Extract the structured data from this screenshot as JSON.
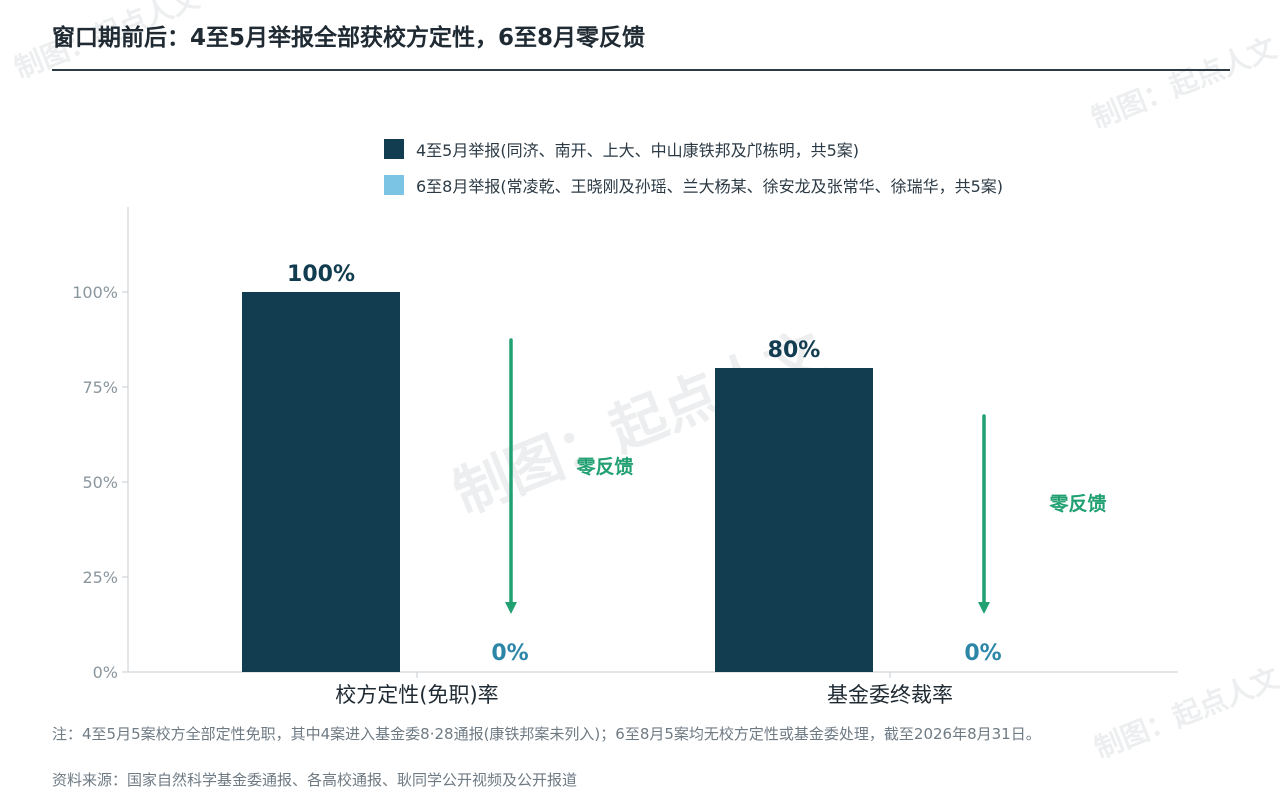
{
  "title": "窗口期前后：4至5月举报全部获校方定性，6至8月零反馈",
  "watermark": "制图：起点人文",
  "colors": {
    "series1": "#123c50",
    "series2": "#7cc4e4",
    "arrow": "#21a072",
    "zero_label": "#2d86a8",
    "axis_tick": "#8a969e",
    "axis_line": "#c7ced3"
  },
  "chart_data": {
    "type": "bar",
    "categories": [
      "校方定性(免职)率",
      "基金委终裁率"
    ],
    "series": [
      {
        "name": "4至5月举报(同济、南开、上大、中山康铁邦及邝栋明，共5案)",
        "values": [
          100,
          80
        ],
        "labels": [
          "100%",
          "80%"
        ]
      },
      {
        "name": "6至8月举报(常凌乾、王晓刚及孙瑶、兰大杨某、徐安龙及张常华、徐瑞华，共5案)",
        "values": [
          0,
          0
        ],
        "labels": [
          "0%",
          "0%"
        ]
      }
    ],
    "ylim": [
      0,
      100
    ],
    "yticks": [
      "0%",
      "25%",
      "50%",
      "75%",
      "100%"
    ],
    "legend_position": "top",
    "annotations": [
      "零反馈",
      "零反馈"
    ],
    "grid": false
  },
  "footer": {
    "note": "注：4至5月5案校方全部定性免职，其中4案进入基金委8·28通报(康铁邦案未列入)；6至8月5案均无校方定性或基金委处理，截至2026年8月31日。",
    "source": "资料来源：国家自然科学基金委通报、各高校通报、耿同学公开视频及公开报道"
  }
}
